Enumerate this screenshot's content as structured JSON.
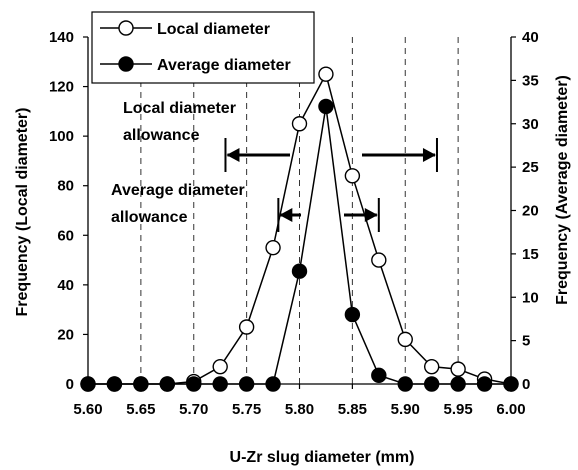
{
  "chart_data": {
    "type": "line",
    "xlabel": "U-Zr slug diameter (mm)",
    "ylabel_left": "Frequency (Local diameter)",
    "ylabel_right": "Frequency (Average diameter)",
    "xlim": [
      5.6,
      6.0
    ],
    "ylim_left": [
      0,
      140
    ],
    "ylim_right": [
      0,
      40
    ],
    "x_ticks": [
      "5.60",
      "5.65",
      "5.70",
      "5.75",
      "5.80",
      "5.85",
      "5.90",
      "5.95",
      "6.00"
    ],
    "y_ticks_left": [
      "0",
      "20",
      "40",
      "60",
      "80",
      "100",
      "120",
      "140"
    ],
    "y_ticks_right": [
      "0",
      "5",
      "10",
      "15",
      "20",
      "25",
      "30",
      "35",
      "40"
    ],
    "gridlines_x": [
      5.65,
      5.7,
      5.75,
      5.8,
      5.85,
      5.9,
      5.95
    ],
    "legend_position": "top-left",
    "series": [
      {
        "name": "Local diameter",
        "axis": "left",
        "marker": "open-circle",
        "x": [
          5.6,
          5.625,
          5.65,
          5.675,
          5.7,
          5.725,
          5.75,
          5.775,
          5.8,
          5.825,
          5.85,
          5.875,
          5.9,
          5.925,
          5.95,
          5.975,
          6.0
        ],
        "y": [
          0,
          0,
          0,
          0,
          1,
          7,
          23,
          55,
          105,
          125,
          84,
          50,
          18,
          7,
          6,
          2,
          0
        ]
      },
      {
        "name": "Average diameter",
        "axis": "right",
        "marker": "filled-circle",
        "x": [
          5.6,
          5.625,
          5.65,
          5.675,
          5.7,
          5.725,
          5.75,
          5.775,
          5.8,
          5.825,
          5.85,
          5.875,
          5.9,
          5.925,
          5.95,
          5.975,
          6.0
        ],
        "y": [
          0,
          0,
          0,
          0,
          0,
          0,
          0,
          0,
          13,
          32,
          8,
          1,
          0,
          0,
          0,
          0,
          0
        ]
      }
    ],
    "annotations": [
      {
        "text_lines": [
          "Local diameter",
          "allowance"
        ],
        "range": [
          5.73,
          5.93
        ]
      },
      {
        "text_lines": [
          "Average diameter",
          "allowance"
        ],
        "range": [
          5.78,
          5.875
        ]
      }
    ]
  }
}
